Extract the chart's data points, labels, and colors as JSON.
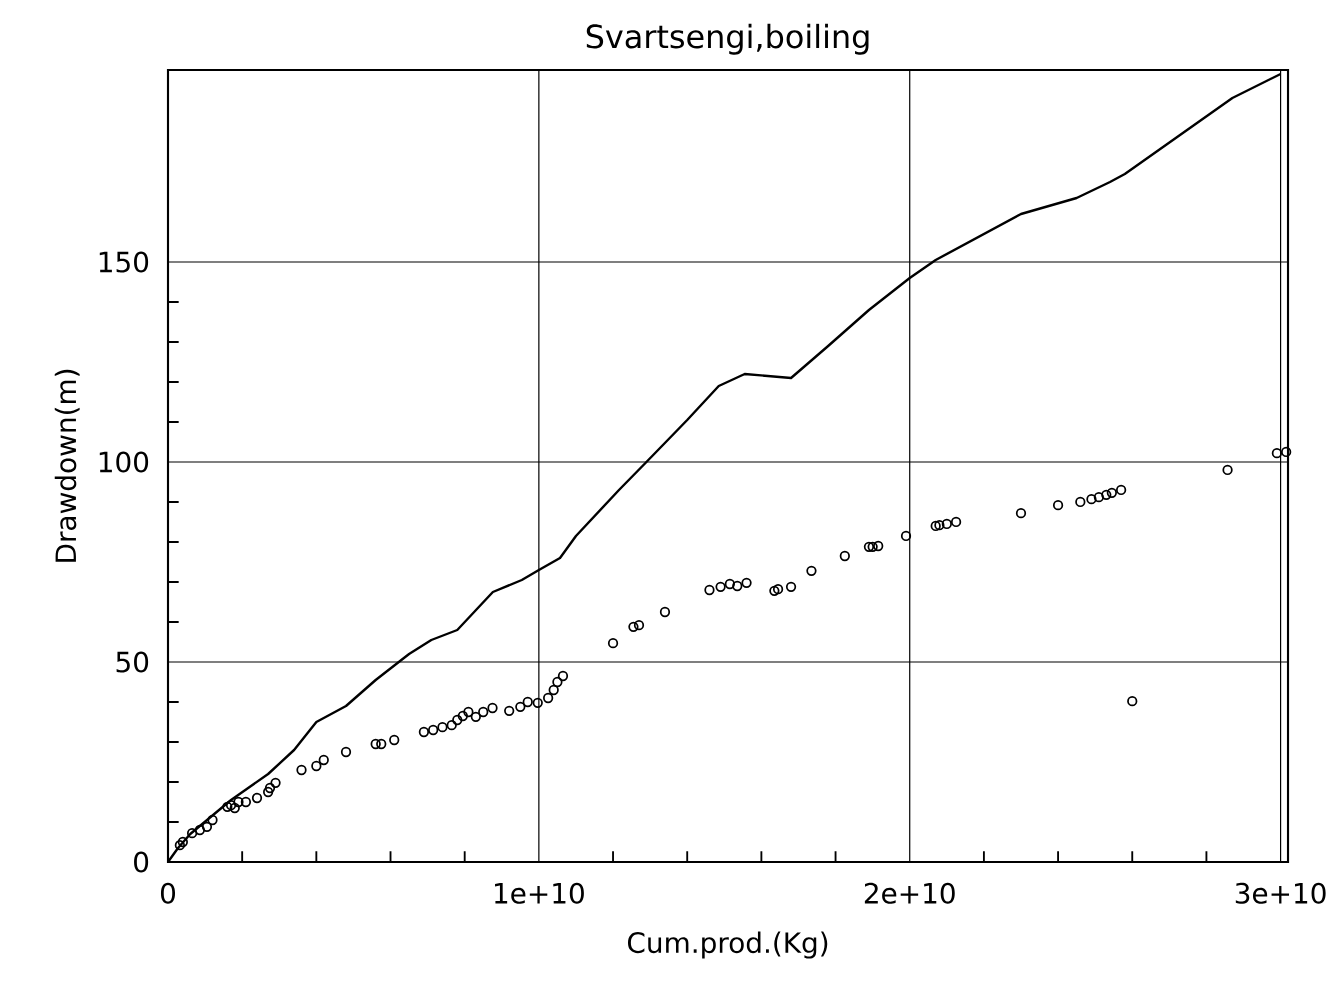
{
  "chart_data": {
    "type": "scatter",
    "title": "Svartsengi,boiling",
    "xlabel": "Cum.prod.(Kg)",
    "ylabel": "Drawdown(m)",
    "xlim": [
      0,
      30200000000.0
    ],
    "ylim": [
      0,
      198
    ],
    "xticks": [
      0,
      {
        "value": 10000000000.0,
        "label": "1e+10"
      },
      {
        "value": 20000000000.0,
        "label": "2e+10"
      },
      {
        "value": 30000000000.0,
        "label": "3e+10"
      }
    ],
    "yticks": [
      0,
      50,
      100,
      150
    ],
    "grid": true,
    "series": [
      {
        "type": "line",
        "color": "#000000",
        "x": [
          0,
          270000000.0,
          600000000.0,
          1700000000.0,
          2700000000.0,
          3400000000.0,
          4000000000.0,
          4800000000.0,
          5600000000.0,
          6500000000.0,
          7100000000.0,
          7800000000.0,
          8760000000.0,
          9540000000.0,
          10000000000.0,
          10570000000.0,
          11000000000.0,
          12160000000.0,
          12900000000.0,
          14000000000.0,
          14850000000.0,
          15550000000.0,
          16800000000.0,
          17800000000.0,
          18900000000.0,
          20000000000.0,
          20700000000.0,
          23000000000.0,
          24500000000.0,
          25400000000.0,
          25800000000.0,
          28700000000.0,
          30000000000.0
        ],
        "values": [
          0,
          3.5,
          7,
          15.5,
          22,
          28,
          35,
          39,
          45.5,
          52,
          55.5,
          58,
          67.5,
          70.5,
          73,
          76,
          81.5,
          93,
          100,
          110.5,
          119,
          122,
          121,
          129,
          138,
          146,
          150.5,
          162,
          166,
          170,
          172,
          191,
          197
        ]
      },
      {
        "marker": "circle",
        "color": "#000000",
        "x": [
          320000000.0,
          400000000.0,
          650000000.0,
          860000000.0,
          1050000000.0,
          1200000000.0,
          1600000000.0,
          1700000000.0,
          1800000000.0,
          1900000000.0,
          2100000000.0,
          2400000000.0,
          2700000000.0,
          2750000000.0,
          2900000000.0,
          3600000000.0,
          4000000000.0,
          4200000000.0,
          4800000000.0,
          5600000000.0,
          5750000000.0,
          6100000000.0,
          6900000000.0,
          7150000000.0,
          7400000000.0,
          7650000000.0,
          7800000000.0,
          7950000000.0,
          8100000000.0,
          8300000000.0,
          8500000000.0,
          8750000000.0,
          9200000000.0,
          9500000000.0,
          9700000000.0,
          9970000000.0,
          10250000000.0,
          10400000000.0,
          10500000000.0,
          10650000000.0,
          12000000000.0,
          12550000000.0,
          12700000000.0,
          13400000000.0,
          14600000000.0,
          14900000000.0,
          15150000000.0,
          15350000000.0,
          15600000000.0,
          16350000000.0,
          16450000000.0,
          16800000000.0,
          17350000000.0,
          18250000000.0,
          18900000000.0,
          19000000000.0,
          19150000000.0,
          19900000000.0,
          20700000000.0,
          20800000000.0,
          21000000000.0,
          21250000000.0,
          23000000000.0,
          24000000000.0,
          24600000000.0,
          24900000000.0,
          25100000000.0,
          25300000000.0,
          25450000000.0,
          25700000000.0,
          26000000000.0,
          28570000000.0,
          29900000000.0,
          30150000000.0
        ],
        "values": [
          4.2,
          5,
          7.2,
          8,
          8.8,
          10.5,
          13.8,
          14.2,
          13.5,
          15,
          15,
          16,
          17.5,
          18.5,
          19.8,
          23,
          24,
          25.5,
          27.5,
          29.5,
          29.5,
          30.5,
          32.5,
          33,
          33.7,
          34.2,
          35.5,
          36.5,
          37.5,
          36.3,
          37.5,
          38.5,
          37.8,
          38.8,
          40,
          39.8,
          41,
          43,
          45,
          46.5,
          54.7,
          58.8,
          59.2,
          62.5,
          68,
          68.8,
          69.5,
          69,
          69.8,
          67.8,
          68.2,
          68.8,
          72.8,
          76.5,
          78.8,
          78.8,
          79,
          81.5,
          84,
          84.2,
          84.5,
          85,
          87.2,
          89.2,
          90,
          90.7,
          91.2,
          91.8,
          92.3,
          93,
          40.2,
          98,
          102.2,
          102.5
        ]
      }
    ]
  }
}
